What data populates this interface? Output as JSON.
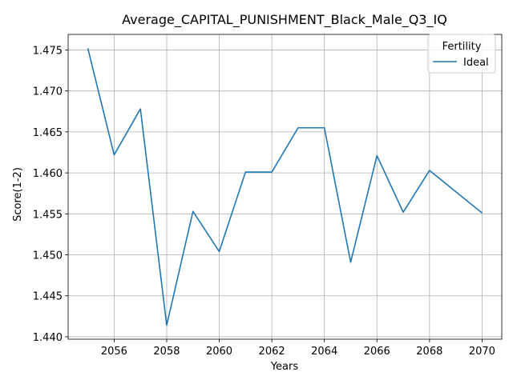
{
  "chart_data": {
    "type": "line",
    "title": "Average_CAPITAL_PUNISHMENT_Black_Male_Q3_IQ",
    "xlabel": "Years",
    "ylabel": "Score(1-2)",
    "x": [
      2055,
      2056,
      2057,
      2058,
      2059,
      2060,
      2061,
      2062,
      2063,
      2064,
      2065,
      2066,
      2067,
      2068,
      2069,
      2070
    ],
    "series": [
      {
        "name": "Ideal",
        "color": "#1f77b4",
        "values": [
          1.4752,
          1.4622,
          1.4678,
          1.4414,
          1.4553,
          1.4504,
          1.4601,
          1.4601,
          1.4655,
          1.4655,
          1.4491,
          1.4621,
          1.4552,
          1.4603,
          1.4577,
          1.4551
        ]
      }
    ],
    "xlim": [
      2054.25,
      2070.75
    ],
    "ylim": [
      1.4397,
      1.4769
    ],
    "xticks": [
      2056,
      2058,
      2060,
      2062,
      2064,
      2066,
      2068,
      2070
    ],
    "yticks": [
      1.44,
      1.445,
      1.45,
      1.455,
      1.46,
      1.465,
      1.47,
      1.475
    ],
    "ytick_labels": [
      "1.440",
      "1.445",
      "1.450",
      "1.455",
      "1.460",
      "1.465",
      "1.470",
      "1.475"
    ],
    "legend": {
      "title": "Fertility",
      "placement": "top-right"
    },
    "grid": true
  }
}
